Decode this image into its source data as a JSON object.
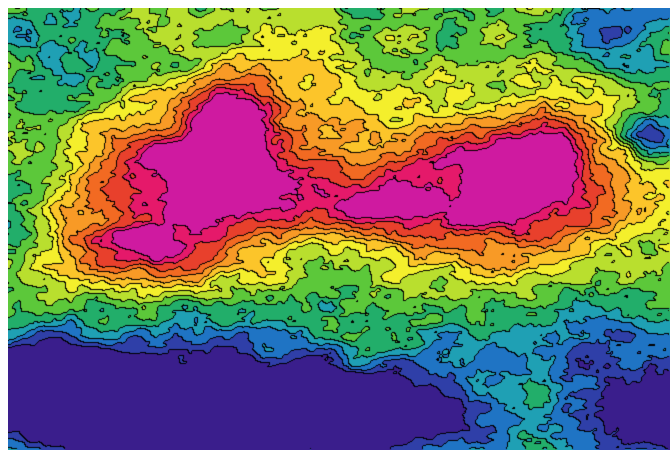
{
  "map": {
    "kind": "filled contour map",
    "colormap": [
      "#3a1e8c",
      "#2f3fa8",
      "#1f74c4",
      "#1fa0b4",
      "#22ae6a",
      "#5cc83a",
      "#b9df2e",
      "#f4ef2c",
      "#fcc52a",
      "#f89a26",
      "#f26a22",
      "#e8402c",
      "#e5196a",
      "#cf1aa0"
    ],
    "contour_line_color": "#000000",
    "contour_levels": 13,
    "features": [
      {
        "name": "left-high-region",
        "level": 0.92
      },
      {
        "name": "right-high-region",
        "level": 0.9
      },
      {
        "name": "lower-basin",
        "level": 0.05
      },
      {
        "name": "lower-right-basin",
        "level": 0.08
      },
      {
        "name": "upper-left-trough",
        "level": 0.32
      },
      {
        "name": "right-edge-trough",
        "level": 0.22
      }
    ]
  }
}
